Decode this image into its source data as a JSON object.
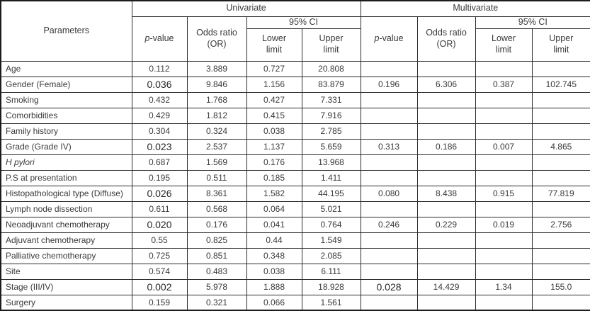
{
  "table": {
    "header": {
      "parameters": "Parameters",
      "univariate": "Univariate",
      "multivariate": "Multivariate",
      "p_value": "p-value",
      "odds_ratio": "Odds ratio\n(OR)",
      "ci": "95% CI",
      "lower_limit": "Lower\nlimit",
      "upper_limit": "Upper\nlimit"
    },
    "rows": [
      {
        "parameter": "Age",
        "italic": false,
        "uni": {
          "p": "0.112",
          "sig": false,
          "or": "3.889",
          "lower": "0.727",
          "upper": "20.808"
        },
        "multi": {
          "p": "",
          "sig": false,
          "or": "",
          "lower": "",
          "upper": ""
        }
      },
      {
        "parameter": "Gender (Female)",
        "italic": false,
        "uni": {
          "p": "0.036",
          "sig": true,
          "or": "9.846",
          "lower": "1.156",
          "upper": "83.879"
        },
        "multi": {
          "p": "0.196",
          "sig": false,
          "or": "6.306",
          "lower": "0.387",
          "upper": "102.745"
        }
      },
      {
        "parameter": "Smoking",
        "italic": false,
        "uni": {
          "p": "0.432",
          "sig": false,
          "or": "1.768",
          "lower": "0.427",
          "upper": "7.331"
        },
        "multi": {
          "p": "",
          "sig": false,
          "or": "",
          "lower": "",
          "upper": ""
        }
      },
      {
        "parameter": "Comorbidities",
        "italic": false,
        "uni": {
          "p": "0.429",
          "sig": false,
          "or": "1.812",
          "lower": "0.415",
          "upper": "7.916"
        },
        "multi": {
          "p": "",
          "sig": false,
          "or": "",
          "lower": "",
          "upper": ""
        }
      },
      {
        "parameter": "Family history",
        "italic": false,
        "uni": {
          "p": "0.304",
          "sig": false,
          "or": "0.324",
          "lower": "0.038",
          "upper": "2.785"
        },
        "multi": {
          "p": "",
          "sig": false,
          "or": "",
          "lower": "",
          "upper": ""
        }
      },
      {
        "parameter": "Grade (Grade IV)",
        "italic": false,
        "uni": {
          "p": "0.023",
          "sig": true,
          "or": "2.537",
          "lower": "1.137",
          "upper": "5.659"
        },
        "multi": {
          "p": "0.313",
          "sig": false,
          "or": "0.186",
          "lower": "0.007",
          "upper": "4.865"
        }
      },
      {
        "parameter": "H pylori",
        "italic": true,
        "uni": {
          "p": "0.687",
          "sig": false,
          "or": "1.569",
          "lower": "0.176",
          "upper": "13.968"
        },
        "multi": {
          "p": "",
          "sig": false,
          "or": "",
          "lower": "",
          "upper": ""
        }
      },
      {
        "parameter": "P.S at presentation",
        "italic": false,
        "uni": {
          "p": "0.195",
          "sig": false,
          "or": "0.511",
          "lower": "0.185",
          "upper": "1.411"
        },
        "multi": {
          "p": "",
          "sig": false,
          "or": "",
          "lower": "",
          "upper": ""
        }
      },
      {
        "parameter": "Histopathological type (Diffuse)",
        "italic": false,
        "uni": {
          "p": "0.026",
          "sig": true,
          "or": "8.361",
          "lower": "1.582",
          "upper": "44.195"
        },
        "multi": {
          "p": "0.080",
          "sig": false,
          "or": "8.438",
          "lower": "0.915",
          "upper": "77.819"
        }
      },
      {
        "parameter": "Lymph node dissection",
        "italic": false,
        "uni": {
          "p": "0.611",
          "sig": false,
          "or": "0.568",
          "lower": "0.064",
          "upper": "5.021"
        },
        "multi": {
          "p": "",
          "sig": false,
          "or": "",
          "lower": "",
          "upper": ""
        }
      },
      {
        "parameter": "Neoadjuvant chemotherapy",
        "italic": false,
        "uni": {
          "p": "0.020",
          "sig": true,
          "or": "0.176",
          "lower": "0.041",
          "upper": "0.764"
        },
        "multi": {
          "p": "0.246",
          "sig": false,
          "or": "0.229",
          "lower": "0.019",
          "upper": "2.756"
        }
      },
      {
        "parameter": "Adjuvant chemotherapy",
        "italic": false,
        "uni": {
          "p": "0.55",
          "sig": false,
          "or": "0.825",
          "lower": "0.44",
          "upper": "1.549"
        },
        "multi": {
          "p": "",
          "sig": false,
          "or": "",
          "lower": "",
          "upper": ""
        }
      },
      {
        "parameter": "Palliative chemotherapy",
        "italic": false,
        "uni": {
          "p": "0.725",
          "sig": false,
          "or": "0.851",
          "lower": "0.348",
          "upper": "2.085"
        },
        "multi": {
          "p": "",
          "sig": false,
          "or": "",
          "lower": "",
          "upper": ""
        }
      },
      {
        "parameter": "Site",
        "italic": false,
        "uni": {
          "p": "0.574",
          "sig": false,
          "or": "0.483",
          "lower": "0.038",
          "upper": "6.111"
        },
        "multi": {
          "p": "",
          "sig": false,
          "or": "",
          "lower": "",
          "upper": ""
        }
      },
      {
        "parameter": "Stage (III/IV)",
        "italic": false,
        "uni": {
          "p": "0.002",
          "sig": true,
          "or": "5.978",
          "lower": "1.888",
          "upper": "18.928"
        },
        "multi": {
          "p": "0.028",
          "sig": true,
          "or": "14.429",
          "lower": "1.34",
          "upper": "155.0"
        }
      },
      {
        "parameter": "Surgery",
        "italic": false,
        "uni": {
          "p": "0.159",
          "sig": false,
          "or": "0.321",
          "lower": "0.066",
          "upper": "1.561"
        },
        "multi": {
          "p": "",
          "sig": false,
          "or": "",
          "lower": "",
          "upper": ""
        }
      }
    ]
  }
}
